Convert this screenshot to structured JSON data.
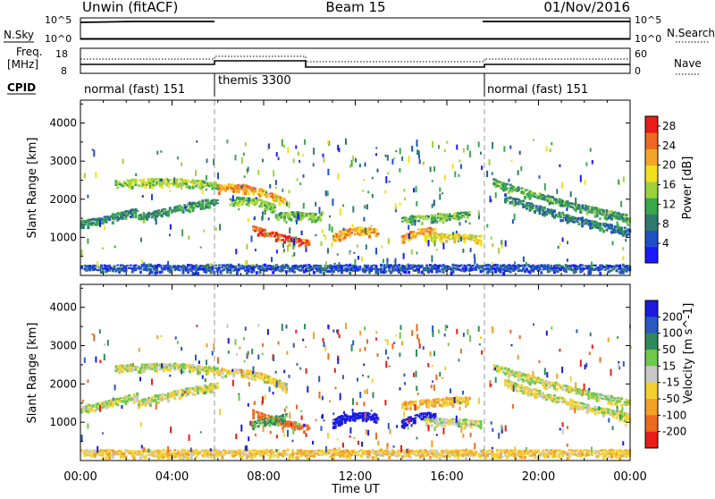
{
  "header": {
    "station": "Unwin (fitACF)",
    "beam": "Beam 15",
    "date": "01/Nov/2016"
  },
  "nsky_panel": {
    "label": "N.Sky",
    "right_label": "N.Search",
    "left_ticks": [
      "10^5",
      "10^0"
    ],
    "right_ticks": [
      "10^5",
      "10^0"
    ]
  },
  "freq_panel": {
    "label_line1": "Freq.",
    "label_line2": "[MHz]",
    "right_label": "Nave",
    "left_ticks": [
      "18",
      "8"
    ],
    "right_ticks": [
      "60",
      "0"
    ]
  },
  "cpid": {
    "label": "CPID",
    "segments": [
      {
        "name": "normal (fast) 151",
        "start_hour": 0,
        "end_hour": 6
      },
      {
        "name": "themis 3300",
        "start_hour": 6,
        "end_hour": 18
      },
      {
        "name": "normal (fast) 151",
        "start_hour": 18,
        "end_hour": 24
      }
    ]
  },
  "chart_data": [
    {
      "type": "heatmap",
      "title": "",
      "xlabel": "",
      "ylabel": "Slant Range [km]",
      "xlim_hours": [
        0,
        24
      ],
      "ylim": [
        0,
        4600
      ],
      "y_ticks": [
        1000,
        2000,
        3000,
        4000
      ],
      "colorbar": {
        "label": "Power [dB]",
        "ticks": [
          4,
          8,
          12,
          16,
          20,
          24,
          28
        ],
        "range": [
          0,
          30
        ],
        "colors": [
          "#1a1aff",
          "#2050c8",
          "#2e7a6e",
          "#3aa84a",
          "#9ed23c",
          "#f2e020",
          "#f2a628",
          "#ec6a20",
          "#e81c18"
        ]
      },
      "bands": [
        {
          "t0": 0,
          "t1": 2.5,
          "r0": 1400,
          "r1": 1550,
          "r2": 1750,
          "value": 9
        },
        {
          "t0": 2.5,
          "t1": 6.0,
          "r0": 1550,
          "r1": 1850,
          "r2": 2000,
          "value": 10
        },
        {
          "t0": 1.5,
          "t1": 6.0,
          "r0": 2450,
          "r1": 2600,
          "r2": 2400,
          "value": 15
        },
        {
          "t0": 6.0,
          "t1": 9.0,
          "r0": 2350,
          "r1": 2450,
          "r2": 1950,
          "value": 22
        },
        {
          "t0": 6.5,
          "t1": 8.5,
          "r0": 2000,
          "r1": 2100,
          "r2": 1800,
          "value": 14
        },
        {
          "t0": 7.5,
          "t1": 10.0,
          "r0": 1300,
          "r1": 1000,
          "r2": 900,
          "value": 26
        },
        {
          "t0": 8.5,
          "t1": 10.5,
          "r0": 1600,
          "r1": 1700,
          "r2": 1550,
          "value": 13
        },
        {
          "t0": 11.0,
          "t1": 13.0,
          "r0": 1050,
          "r1": 1350,
          "r2": 1150,
          "value": 22
        },
        {
          "t0": 14.0,
          "t1": 15.5,
          "r0": 1000,
          "r1": 1300,
          "r2": 1200,
          "value": 22
        },
        {
          "t0": 14.0,
          "t1": 17.0,
          "r0": 1500,
          "r1": 1600,
          "r2": 1650,
          "value": 12
        },
        {
          "t0": 15.0,
          "t1": 17.5,
          "r0": 1050,
          "r1": 1100,
          "r2": 1000,
          "value": 18
        },
        {
          "t0": 18.0,
          "t1": 24.0,
          "r0": 2500,
          "r1": 1900,
          "r2": 1550,
          "value": 11
        },
        {
          "t0": 18.5,
          "t1": 24.0,
          "r0": 2100,
          "r1": 1500,
          "r2": 1200,
          "value": 8
        },
        {
          "t0": 0,
          "t1": 24.0,
          "r0": 250,
          "r1": 250,
          "r2": 250,
          "value": 5
        }
      ]
    },
    {
      "type": "heatmap",
      "title": "",
      "xlabel": "Time UT",
      "ylabel": "Slant Range [km]",
      "xlim_hours": [
        0,
        24
      ],
      "ylim": [
        0,
        4600
      ],
      "y_ticks": [
        1000,
        2000,
        3000,
        4000
      ],
      "x_tick_labels": [
        "00:00",
        "04:00",
        "08:00",
        "12:00",
        "16:00",
        "20:00",
        "00:00"
      ],
      "colorbar": {
        "label": "Velocity [m s^-1]",
        "ticks": [
          200,
          100,
          50,
          15,
          -15,
          -50,
          -100,
          -200
        ],
        "colors": [
          "#1a1ae0",
          "#2a5ac0",
          "#2e8a5a",
          "#6ec84a",
          "#c8c8c8",
          "#f2d030",
          "#f2a028",
          "#ec6a20",
          "#e81c18"
        ]
      },
      "bands": [
        {
          "t0": 0,
          "t1": 2.5,
          "r0": 1400,
          "r1": 1550,
          "r2": 1750,
          "value": 0
        },
        {
          "t0": 2.5,
          "t1": 6.0,
          "r0": 1550,
          "r1": 1850,
          "r2": 2000,
          "value": 0
        },
        {
          "t0": 1.5,
          "t1": 6.0,
          "r0": 2450,
          "r1": 2600,
          "r2": 2400,
          "value": 0
        },
        {
          "t0": 6.0,
          "t1": 9.0,
          "r0": 2350,
          "r1": 2450,
          "r2": 1950,
          "value": -10
        },
        {
          "t0": 7.5,
          "t1": 10.0,
          "r0": 1300,
          "r1": 1000,
          "r2": 900,
          "value": -120
        },
        {
          "t0": 7.5,
          "t1": 9.0,
          "r0": 1000,
          "r1": 1100,
          "r2": 1200,
          "value": 40
        },
        {
          "t0": 11.0,
          "t1": 13.0,
          "r0": 1050,
          "r1": 1350,
          "r2": 1150,
          "value": 180
        },
        {
          "t0": 14.0,
          "t1": 15.5,
          "r0": 1000,
          "r1": 1300,
          "r2": 1200,
          "value": 170
        },
        {
          "t0": 14.0,
          "t1": 17.0,
          "r0": 1500,
          "r1": 1600,
          "r2": 1650,
          "value": -40
        },
        {
          "t0": 15.0,
          "t1": 17.5,
          "r0": 1050,
          "r1": 1100,
          "r2": 1000,
          "value": 0
        },
        {
          "t0": 18.0,
          "t1": 24.0,
          "r0": 2500,
          "r1": 1900,
          "r2": 1550,
          "value": 0
        },
        {
          "t0": 18.5,
          "t1": 24.0,
          "r0": 2100,
          "r1": 1500,
          "r2": 1200,
          "value": -5
        },
        {
          "t0": 0,
          "t1": 24.0,
          "r0": 250,
          "r1": 250,
          "r2": 250,
          "value": -20
        }
      ]
    }
  ]
}
